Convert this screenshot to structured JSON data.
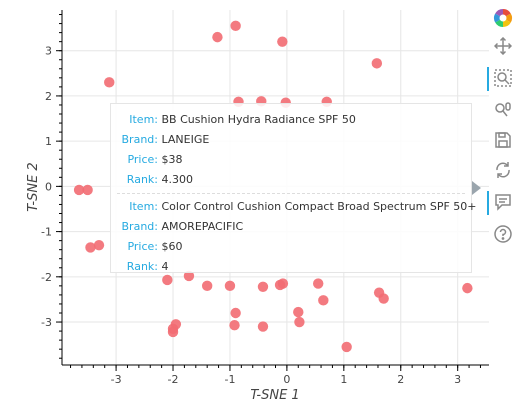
{
  "chart_data": {
    "type": "scatter",
    "xlabel": "T-SNE 1",
    "ylabel": "T-SNE 2",
    "xlim": [
      -3.95,
      3.55
    ],
    "ylim": [
      -3.95,
      3.9
    ],
    "x_ticks": [
      -3,
      -2,
      -1,
      0,
      1,
      2,
      3
    ],
    "y_ticks": [
      -3,
      -2,
      -1,
      0,
      1,
      2,
      3
    ],
    "grid": true,
    "point_color": "#f26b72",
    "points": [
      {
        "x": -0.9,
        "y": 3.55
      },
      {
        "x": -1.22,
        "y": 3.3
      },
      {
        "x": -0.08,
        "y": 3.2
      },
      {
        "x": 1.58,
        "y": 2.72
      },
      {
        "x": -3.12,
        "y": 2.3
      },
      {
        "x": -0.85,
        "y": 1.87
      },
      {
        "x": -0.45,
        "y": 1.88
      },
      {
        "x": -0.02,
        "y": 1.85
      },
      {
        "x": 0.7,
        "y": 1.87
      },
      {
        "x": -3.65,
        "y": -0.08
      },
      {
        "x": -3.5,
        "y": -0.08
      },
      {
        "x": -3.45,
        "y": -1.35
      },
      {
        "x": -3.3,
        "y": -1.3
      },
      {
        "x": -2.1,
        "y": -2.07
      },
      {
        "x": -1.72,
        "y": -1.98
      },
      {
        "x": -1.4,
        "y": -2.2
      },
      {
        "x": -1.0,
        "y": -2.2
      },
      {
        "x": -0.42,
        "y": -2.22
      },
      {
        "x": -0.12,
        "y": -2.18
      },
      {
        "x": -0.07,
        "y": -2.15
      },
      {
        "x": 0.55,
        "y": -2.15
      },
      {
        "x": 0.64,
        "y": -2.52
      },
      {
        "x": 1.62,
        "y": -2.35
      },
      {
        "x": 1.7,
        "y": -2.48
      },
      {
        "x": 3.17,
        "y": -2.25
      },
      {
        "x": -1.95,
        "y": -3.05
      },
      {
        "x": -2.0,
        "y": -3.15
      },
      {
        "x": -2.0,
        "y": -3.22
      },
      {
        "x": -0.9,
        "y": -2.8
      },
      {
        "x": -0.92,
        "y": -3.07
      },
      {
        "x": -0.42,
        "y": -3.1
      },
      {
        "x": 0.2,
        "y": -2.78
      },
      {
        "x": 0.22,
        "y": -3.0
      },
      {
        "x": 1.05,
        "y": -3.55
      }
    ]
  },
  "tooltip": {
    "items": [
      {
        "fields": [
          {
            "key": "Item:",
            "value": "BB Cushion Hydra Radiance SPF 50"
          },
          {
            "key": "Brand:",
            "value": "LANEIGE"
          },
          {
            "key": "Price:",
            "value": "$38"
          },
          {
            "key": "Rank:",
            "value": "4.300"
          }
        ]
      },
      {
        "fields": [
          {
            "key": "Item:",
            "value": "Color Control Cushion Compact Broad Spectrum SPF 50+"
          },
          {
            "key": "Brand:",
            "value": "AMOREPACIFIC"
          },
          {
            "key": "Price:",
            "value": "$60"
          },
          {
            "key": "Rank:",
            "value": "4"
          }
        ]
      }
    ]
  },
  "toolbar": {
    "tools": [
      {
        "name": "bokeh-logo-icon",
        "interactable": false,
        "active": false
      },
      {
        "name": "pan-tool-icon",
        "interactable": true,
        "active": false
      },
      {
        "name": "box-zoom-tool-icon",
        "interactable": true,
        "active": true
      },
      {
        "name": "wheel-zoom-tool-icon",
        "interactable": true,
        "active": false
      },
      {
        "name": "save-tool-icon",
        "interactable": true,
        "active": false
      },
      {
        "name": "reset-tool-icon",
        "interactable": true,
        "active": false
      },
      {
        "name": "hover-tool-icon",
        "interactable": true,
        "active": true
      },
      {
        "name": "help-tool-icon",
        "interactable": true,
        "active": false
      }
    ]
  }
}
